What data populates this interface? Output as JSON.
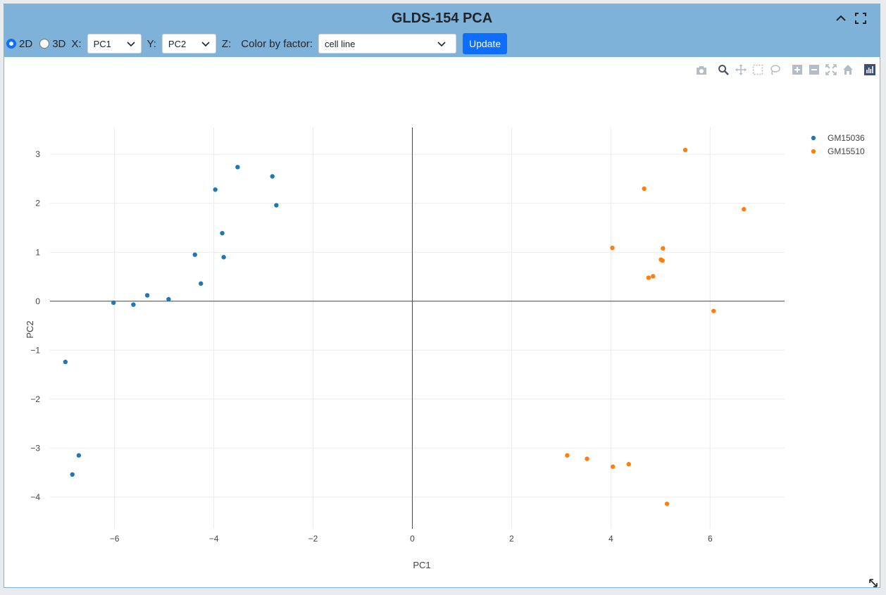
{
  "header": {
    "title": "GLDS-154 PCA"
  },
  "controls": {
    "mode_2d_label": "2D",
    "mode_3d_label": "3D",
    "x_label": "X:",
    "x_value": "PC1",
    "y_label": "Y:",
    "y_value": "PC2",
    "z_label": "Z:",
    "color_label": "Color by factor:",
    "color_value": "cell line",
    "update_label": "Update"
  },
  "colors": {
    "header_bg": "#7fb2d8",
    "accent": "#0d6efd",
    "series1": "#1f77b4",
    "series2": "#ff7f0e"
  },
  "chart_data": {
    "type": "scatter",
    "title": "",
    "xlabel": "PC1",
    "ylabel": "PC2",
    "xlim": [
      -7.3,
      7.5
    ],
    "ylim": [
      -4.65,
      3.55
    ],
    "xticks": [
      -6,
      -4,
      -2,
      0,
      2,
      4,
      6
    ],
    "yticks": [
      -4,
      -3,
      -2,
      -1,
      0,
      1,
      2,
      3
    ],
    "grid": true,
    "legend": "top-right",
    "series": [
      {
        "name": "GM15036",
        "color": "#1f77b4",
        "points": [
          [
            -3.52,
            2.74
          ],
          [
            -2.82,
            2.55
          ],
          [
            -3.97,
            2.28
          ],
          [
            -2.74,
            1.96
          ],
          [
            -3.83,
            1.39
          ],
          [
            -4.38,
            0.95
          ],
          [
            -3.8,
            0.9
          ],
          [
            -4.26,
            0.36
          ],
          [
            -5.34,
            0.12
          ],
          [
            -4.91,
            0.04
          ],
          [
            -6.02,
            -0.03
          ],
          [
            -5.62,
            -0.07
          ],
          [
            -6.99,
            -1.24
          ],
          [
            -6.72,
            -3.15
          ],
          [
            -6.85,
            -3.54
          ]
        ]
      },
      {
        "name": "GM15510",
        "color": "#ff7f0e",
        "points": [
          [
            5.5,
            3.09
          ],
          [
            4.67,
            2.3
          ],
          [
            6.68,
            1.88
          ],
          [
            4.03,
            1.09
          ],
          [
            5.05,
            1.08
          ],
          [
            5.01,
            0.85
          ],
          [
            5.04,
            0.83
          ],
          [
            4.85,
            0.51
          ],
          [
            4.76,
            0.48
          ],
          [
            6.07,
            -0.2
          ],
          [
            3.12,
            -3.15
          ],
          [
            3.52,
            -3.22
          ],
          [
            4.04,
            -3.38
          ],
          [
            4.36,
            -3.33
          ],
          [
            5.13,
            -4.14
          ]
        ]
      }
    ]
  }
}
